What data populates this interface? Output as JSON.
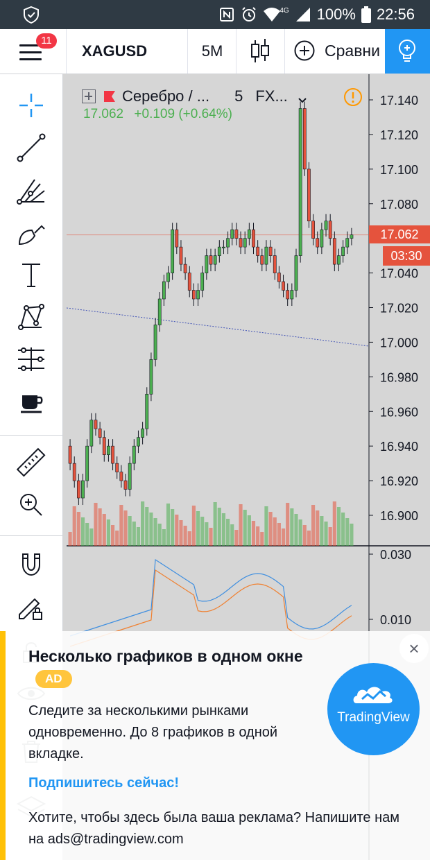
{
  "status_bar": {
    "battery": "100%",
    "time": "22:56",
    "network": "4G"
  },
  "header": {
    "menu_badge": "11",
    "symbol": "XAGUSD",
    "interval": "5M",
    "compare_label": "Сравни"
  },
  "legend": {
    "name": "Серебро / ...",
    "interval": "5",
    "exchange": "FX...",
    "last": "17.062",
    "change": "+0.109 (+0.64%)"
  },
  "price_axis": {
    "ticks": [
      "17.140",
      "17.120",
      "17.100",
      "17.080",
      "17.040",
      "17.020",
      "17.000",
      "16.980",
      "16.960",
      "16.940",
      "16.920",
      "16.900"
    ],
    "current_price": "17.062",
    "countdown": "03:30"
  },
  "indicator_axis": {
    "ticks": [
      "0.030",
      "0.010"
    ]
  },
  "colors": {
    "up": "#4caf50",
    "down": "#e5533d",
    "accent": "#2196f3",
    "ad_bar": "#ffc107"
  },
  "ad": {
    "title": "Несколько графиков в одном окне",
    "badge": "AD",
    "text": "Следите за несколькими рынками одновременно. До 8 графиков в одной вкладке.",
    "cta": "Подпишитесь сейчас!",
    "footer": "Хотите, чтобы здесь была ваша реклама? Напишите нам на ads@tradingview.com",
    "logo": "TradingView",
    "close": "×"
  }
}
